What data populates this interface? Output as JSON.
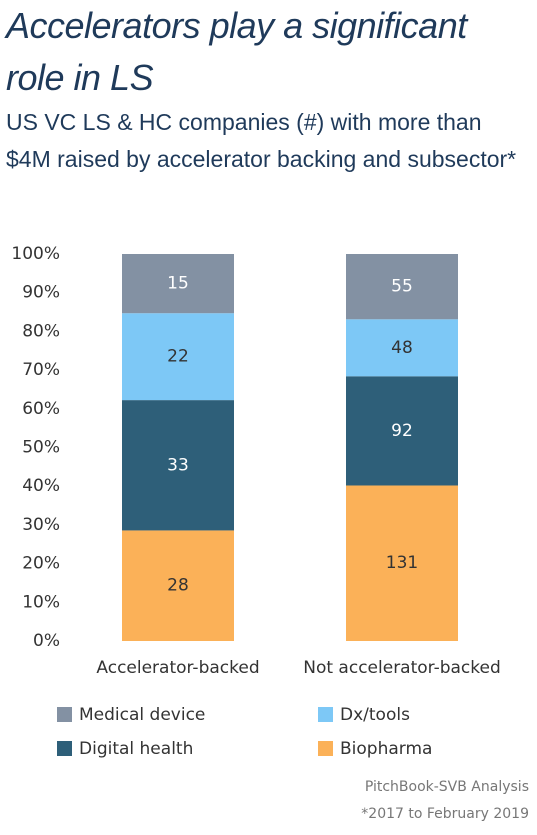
{
  "chart_data": {
    "type": "bar",
    "stacking": "percent",
    "title": "Accelerators play a significant role in LS",
    "subtitle": "US VC LS & HC companies (#) with more than $4M raised by accelerator backing and subsector*",
    "categories": [
      "Accelerator-backed",
      "Not accelerator-backed"
    ],
    "series": [
      {
        "name": "Biopharma",
        "color": "#fbb158",
        "label_color": "#333333",
        "values": [
          28,
          131
        ]
      },
      {
        "name": "Digital health",
        "color": "#2e5f79",
        "label_color": "#ffffff",
        "values": [
          33,
          92
        ]
      },
      {
        "name": "Dx/tools",
        "color": "#7dc8f6",
        "label_color": "#333333",
        "values": [
          22,
          48
        ]
      },
      {
        "name": "Medical device",
        "color": "#8391a3",
        "label_color": "#ffffff",
        "values": [
          15,
          55
        ]
      }
    ],
    "ylim": [
      0,
      100
    ],
    "yticks": [
      {
        "value": 0,
        "label": "0%"
      },
      {
        "value": 10,
        "label": "10%"
      },
      {
        "value": 20,
        "label": "20%"
      },
      {
        "value": 30,
        "label": "30%"
      },
      {
        "value": 40,
        "label": "40%"
      },
      {
        "value": 50,
        "label": "50%"
      },
      {
        "value": 60,
        "label": "60%"
      },
      {
        "value": 70,
        "label": "70%"
      },
      {
        "value": 80,
        "label": "80%"
      },
      {
        "value": 90,
        "label": "90%"
      },
      {
        "value": 100,
        "label": "100%"
      }
    ],
    "grid": false,
    "source": "PitchBook-SVB Analysis",
    "note": "*2017 to February 2019"
  }
}
